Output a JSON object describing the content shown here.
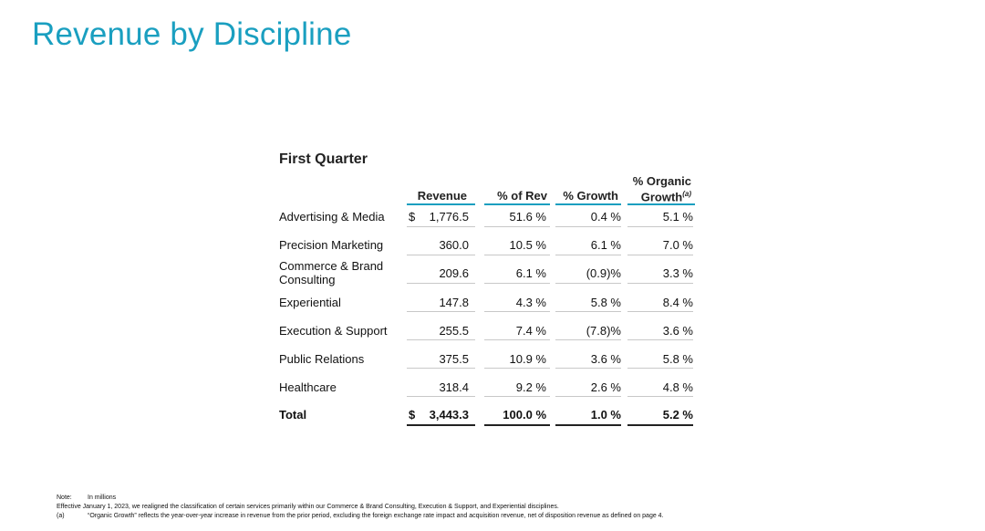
{
  "title": "Revenue by Discipline",
  "section": "First Quarter",
  "columns": {
    "revenue": "Revenue",
    "pct_rev": "% of Rev",
    "growth": "% Growth",
    "organic_line1": "% Organic",
    "organic_line2": "Growth",
    "organic_sup": "(a)"
  },
  "rows": [
    {
      "label": "Advertising & Media",
      "dollar": "$",
      "revenue": "1,776.5",
      "pct_rev": "51.6 %",
      "growth": "0.4 %",
      "organic": "5.1 %"
    },
    {
      "label": "Precision Marketing",
      "dollar": "",
      "revenue": "360.0",
      "pct_rev": "10.5 %",
      "growth": "6.1 %",
      "organic": "7.0 %"
    },
    {
      "label": "Commerce & Brand Consulting",
      "dollar": "",
      "revenue": "209.6",
      "pct_rev": "6.1 %",
      "growth": "(0.9)%",
      "organic": "3.3 %"
    },
    {
      "label": "Experiential",
      "dollar": "",
      "revenue": "147.8",
      "pct_rev": "4.3 %",
      "growth": "5.8 %",
      "organic": "8.4 %"
    },
    {
      "label": "Execution & Support",
      "dollar": "",
      "revenue": "255.5",
      "pct_rev": "7.4 %",
      "growth": "(7.8)%",
      "organic": "3.6 %"
    },
    {
      "label": "Public Relations",
      "dollar": "",
      "revenue": "375.5",
      "pct_rev": "10.9 %",
      "growth": "3.6 %",
      "organic": "5.8 %"
    },
    {
      "label": "Healthcare",
      "dollar": "",
      "revenue": "318.4",
      "pct_rev": "9.2 %",
      "growth": "2.6 %",
      "organic": "4.8 %"
    }
  ],
  "total": {
    "label": "Total",
    "dollar": "$",
    "revenue": "3,443.3",
    "pct_rev": "100.0 %",
    "growth": "1.0 %",
    "organic": "5.2 %"
  },
  "notes": [
    {
      "key": "Note:",
      "text": "In millions"
    },
    {
      "key": "",
      "text": "Effective January 1, 2023, we realigned the classification of certain services primarily within our Commerce & Brand Consulting, Execution & Support, and Experiential disciplines."
    },
    {
      "key": "(a)",
      "text": "“Organic Growth” reflects the year-over-year increase in revenue from the prior period, excluding the foreign exchange rate impact and acquisition revenue, net of disposition revenue as defined on page 4."
    }
  ],
  "colors": {
    "accent": "#1a9fc0"
  }
}
